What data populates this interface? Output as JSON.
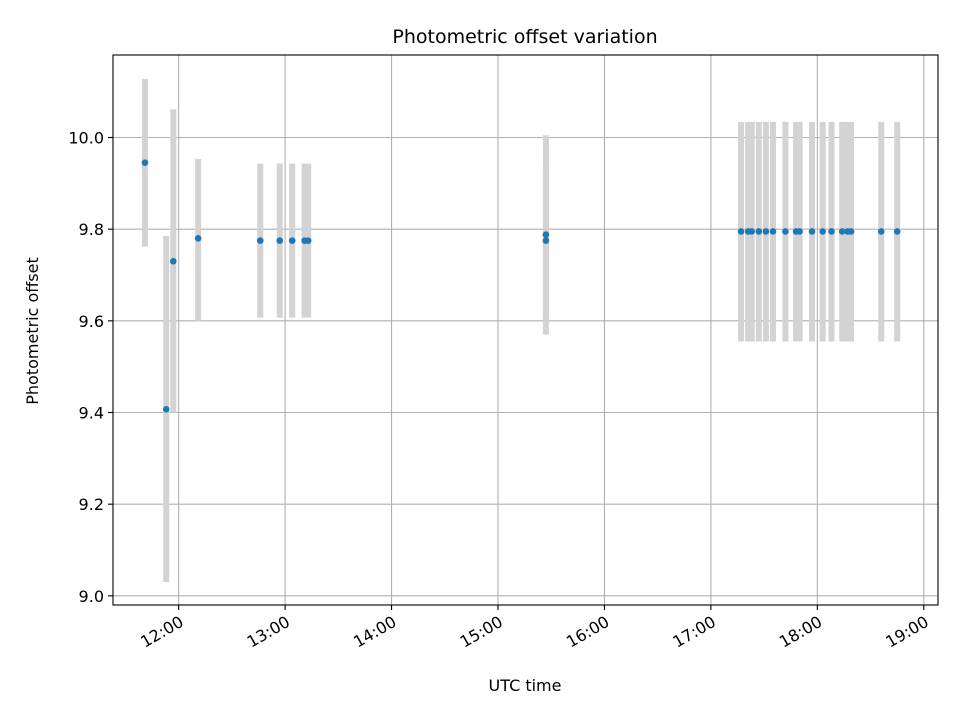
{
  "chart_data": {
    "type": "scatter",
    "title": "Photometric offset variation",
    "xlabel": "UTC time",
    "ylabel": "Photometric offset",
    "x_kind": "time-of-day",
    "xlim": [
      "11:23",
      "19:08"
    ],
    "ylim": [
      8.98,
      10.18
    ],
    "x_ticks": [
      "12:00",
      "13:00",
      "14:00",
      "15:00",
      "16:00",
      "17:00",
      "18:00",
      "19:00"
    ],
    "y_ticks": [
      "9.0",
      "9.2",
      "9.4",
      "9.6",
      "9.8",
      "10.0"
    ],
    "grid": true,
    "marker_color": "#1f77b4",
    "errorbar_color": "#d3d3d3",
    "points": [
      {
        "x": "11:41",
        "y": 9.945,
        "ylow": 9.762,
        "yhigh": 10.128
      },
      {
        "x": "11:53",
        "y": 9.407,
        "ylow": 9.03,
        "yhigh": 9.785
      },
      {
        "x": "11:57",
        "y": 9.73,
        "ylow": 9.4,
        "yhigh": 10.062
      },
      {
        "x": "12:11",
        "y": 9.78,
        "ylow": 9.6,
        "yhigh": 9.953
      },
      {
        "x": "12:46",
        "y": 9.775,
        "ylow": 9.607,
        "yhigh": 9.943
      },
      {
        "x": "12:57",
        "y": 9.775,
        "ylow": 9.607,
        "yhigh": 9.943
      },
      {
        "x": "13:04",
        "y": 9.775,
        "ylow": 9.607,
        "yhigh": 9.943
      },
      {
        "x": "13:11",
        "y": 9.775,
        "ylow": 9.607,
        "yhigh": 9.943
      },
      {
        "x": "13:13",
        "y": 9.775,
        "ylow": 9.607,
        "yhigh": 9.943
      },
      {
        "x": "15:27",
        "y": 9.775,
        "ylow": 9.607,
        "yhigh": 9.943
      },
      {
        "x": "15:27",
        "y": 9.788,
        "ylow": 9.57,
        "yhigh": 10.005
      },
      {
        "x": "17:17",
        "y": 9.795,
        "ylow": 9.555,
        "yhigh": 10.034
      },
      {
        "x": "17:21",
        "y": 9.795,
        "ylow": 9.555,
        "yhigh": 10.034
      },
      {
        "x": "17:23",
        "y": 9.795,
        "ylow": 9.555,
        "yhigh": 10.034
      },
      {
        "x": "17:27",
        "y": 9.795,
        "ylow": 9.555,
        "yhigh": 10.034
      },
      {
        "x": "17:31",
        "y": 9.795,
        "ylow": 9.555,
        "yhigh": 10.034
      },
      {
        "x": "17:35",
        "y": 9.795,
        "ylow": 9.555,
        "yhigh": 10.034
      },
      {
        "x": "17:42",
        "y": 9.795,
        "ylow": 9.555,
        "yhigh": 10.034
      },
      {
        "x": "17:48",
        "y": 9.795,
        "ylow": 9.555,
        "yhigh": 10.034
      },
      {
        "x": "17:50",
        "y": 9.795,
        "ylow": 9.555,
        "yhigh": 10.034
      },
      {
        "x": "17:57",
        "y": 9.795,
        "ylow": 9.555,
        "yhigh": 10.034
      },
      {
        "x": "18:03",
        "y": 9.795,
        "ylow": 9.555,
        "yhigh": 10.034
      },
      {
        "x": "18:08",
        "y": 9.795,
        "ylow": 9.555,
        "yhigh": 10.034
      },
      {
        "x": "18:14",
        "y": 9.795,
        "ylow": 9.555,
        "yhigh": 10.034
      },
      {
        "x": "18:17",
        "y": 9.795,
        "ylow": 9.555,
        "yhigh": 10.034
      },
      {
        "x": "18:19",
        "y": 9.795,
        "ylow": 9.555,
        "yhigh": 10.034
      },
      {
        "x": "18:36",
        "y": 9.795,
        "ylow": 9.555,
        "yhigh": 10.034
      },
      {
        "x": "18:45",
        "y": 9.795,
        "ylow": 9.555,
        "yhigh": 10.034
      }
    ]
  }
}
